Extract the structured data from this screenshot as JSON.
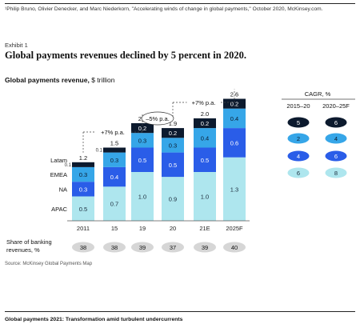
{
  "citation": "¹Philip Bruno, Olivier Denecker, and Marc Niederkorn, \"Accelerating winds of change in global payments,\" October 2020, McKinsey.com.",
  "exhibit": "Exhibit 1",
  "title": "Global payments revenues declined by 5 percent in 2020.",
  "subtitle_bold": "Global payments revenue,",
  "subtitle_unit": " $ trillion",
  "source": "Source: McKinsey Global Payments Map",
  "footer": "Global payments 2021: Transformation amid turbulent undercurrents",
  "colors": {
    "apac": "#aee6ee",
    "na": "#2a5de8",
    "emea": "#36a6e8",
    "latam": "#0c1a2e",
    "pill": "#d6d6d6"
  },
  "chart_data": {
    "type": "bar",
    "stacked": true,
    "categories": [
      "2011",
      "15",
      "19",
      "20",
      "21E",
      "2025F"
    ],
    "series": [
      {
        "name": "APAC",
        "values": [
          0.5,
          0.7,
          1.0,
          0.9,
          1.0,
          1.3
        ]
      },
      {
        "name": "NA",
        "values": [
          0.3,
          0.4,
          0.5,
          0.5,
          0.5,
          0.6
        ]
      },
      {
        "name": "EMEA",
        "values": [
          0.3,
          0.3,
          0.3,
          0.3,
          0.4,
          0.4
        ]
      },
      {
        "name": "Latam",
        "values": [
          0.1,
          0.1,
          0.2,
          0.2,
          0.2,
          0.2
        ]
      }
    ],
    "totals": [
      "1.2",
      "1.5",
      "2.0",
      "1.9",
      "2.0",
      "2.6"
    ],
    "annotations": [
      {
        "label": "+7% p.a.",
        "from": "2011",
        "to": "19"
      },
      {
        "label": "–5% p.a.",
        "from": "19",
        "to": "20"
      },
      {
        "label": "+7% p.a.",
        "from": "20",
        "to": "2025F"
      }
    ],
    "share_label": [
      "Share of banking",
      "revenues, %"
    ],
    "share_values": [
      "38",
      "38",
      "39",
      "37",
      "39",
      "40"
    ],
    "cagr": {
      "title": "CAGR, %",
      "columns": [
        "2015–20",
        "2020–25F"
      ],
      "rows": [
        {
          "series": "Latam",
          "values": [
            "5",
            "6"
          ]
        },
        {
          "series": "EMEA",
          "values": [
            "2",
            "4"
          ]
        },
        {
          "series": "NA",
          "values": [
            "4",
            "6"
          ]
        },
        {
          "series": "APAC",
          "values": [
            "6",
            "8"
          ]
        }
      ]
    }
  }
}
